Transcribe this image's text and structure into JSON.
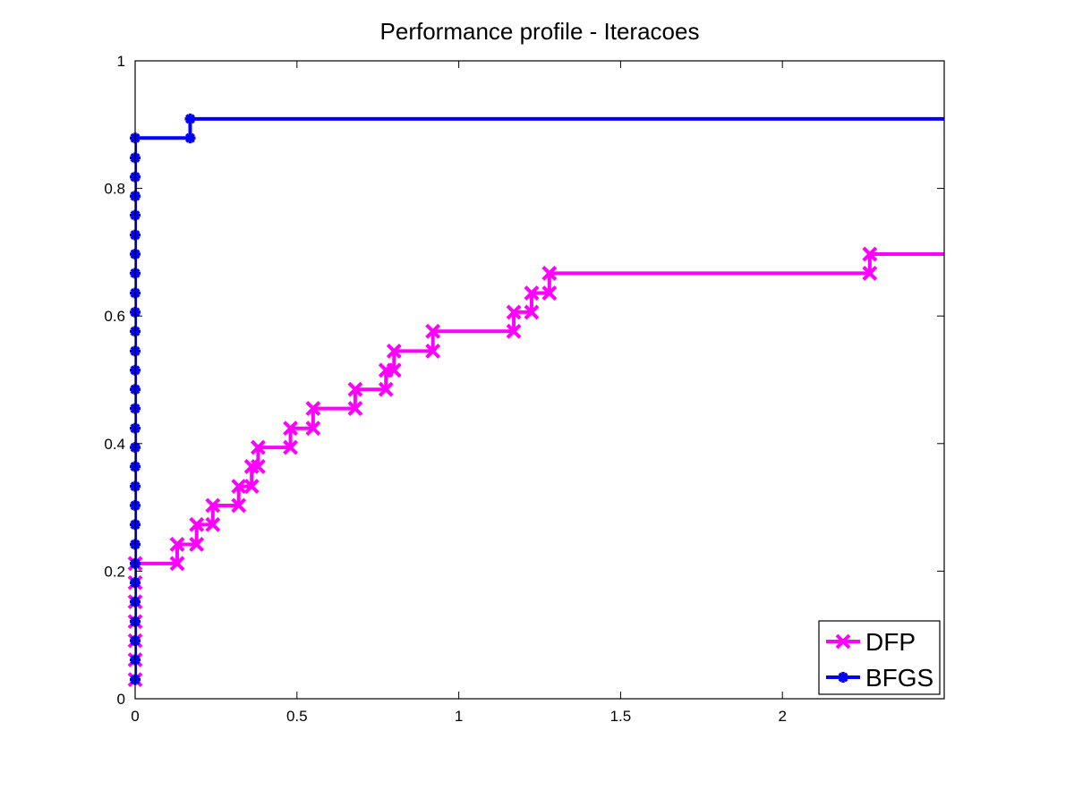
{
  "chart_data": {
    "type": "line",
    "title": "Performance profile - Iteracoes",
    "xlabel": "",
    "ylabel": "",
    "xlim": [
      0,
      2.5
    ],
    "ylim": [
      0,
      1
    ],
    "xticks": [
      0,
      0.5,
      1,
      1.5,
      2
    ],
    "xtick_labels": [
      "0",
      "0.5",
      "1",
      "1.5",
      "2"
    ],
    "yticks": [
      0,
      0.2,
      0.4,
      0.6,
      0.8,
      1
    ],
    "ytick_labels": [
      "0",
      "0.2",
      "0.4",
      "0.6",
      "0.8",
      "1"
    ],
    "grid": false,
    "legend_position": "bottom-right",
    "series": [
      {
        "name": "DFP",
        "color": "#ff00ff",
        "marker": "x",
        "step": true,
        "points": [
          [
            0,
            0.03
          ],
          [
            0,
            0.061
          ],
          [
            0,
            0.091
          ],
          [
            0,
            0.121
          ],
          [
            0,
            0.152
          ],
          [
            0,
            0.182
          ],
          [
            0,
            0.212
          ],
          [
            0.13,
            0.212
          ],
          [
            0.13,
            0.242
          ],
          [
            0.19,
            0.242
          ],
          [
            0.19,
            0.273
          ],
          [
            0.24,
            0.273
          ],
          [
            0.24,
            0.303
          ],
          [
            0.32,
            0.303
          ],
          [
            0.32,
            0.333
          ],
          [
            0.36,
            0.333
          ],
          [
            0.36,
            0.364
          ],
          [
            0.38,
            0.364
          ],
          [
            0.38,
            0.394
          ],
          [
            0.48,
            0.394
          ],
          [
            0.48,
            0.424
          ],
          [
            0.55,
            0.424
          ],
          [
            0.55,
            0.455
          ],
          [
            0.68,
            0.455
          ],
          [
            0.68,
            0.485
          ],
          [
            0.775,
            0.485
          ],
          [
            0.775,
            0.515
          ],
          [
            0.8,
            0.515
          ],
          [
            0.8,
            0.545
          ],
          [
            0.92,
            0.545
          ],
          [
            0.92,
            0.576
          ],
          [
            1.17,
            0.576
          ],
          [
            1.17,
            0.606
          ],
          [
            1.225,
            0.606
          ],
          [
            1.225,
            0.636
          ],
          [
            1.28,
            0.636
          ],
          [
            1.28,
            0.667
          ],
          [
            2.27,
            0.667
          ],
          [
            2.27,
            0.697
          ],
          [
            2.5,
            0.697
          ]
        ]
      },
      {
        "name": "BFGS",
        "color": "#0000ff",
        "marker": "asterisk",
        "step": true,
        "points": [
          [
            0,
            0.03
          ],
          [
            0,
            0.061
          ],
          [
            0,
            0.091
          ],
          [
            0,
            0.121
          ],
          [
            0,
            0.152
          ],
          [
            0,
            0.182
          ],
          [
            0,
            0.212
          ],
          [
            0,
            0.242
          ],
          [
            0,
            0.273
          ],
          [
            0,
            0.303
          ],
          [
            0,
            0.333
          ],
          [
            0,
            0.364
          ],
          [
            0,
            0.394
          ],
          [
            0,
            0.424
          ],
          [
            0,
            0.455
          ],
          [
            0,
            0.485
          ],
          [
            0,
            0.515
          ],
          [
            0,
            0.545
          ],
          [
            0,
            0.576
          ],
          [
            0,
            0.606
          ],
          [
            0,
            0.636
          ],
          [
            0,
            0.667
          ],
          [
            0,
            0.697
          ],
          [
            0,
            0.727
          ],
          [
            0,
            0.758
          ],
          [
            0,
            0.788
          ],
          [
            0,
            0.818
          ],
          [
            0,
            0.848
          ],
          [
            0,
            0.879
          ],
          [
            0.17,
            0.879
          ],
          [
            0.17,
            0.909
          ],
          [
            2.5,
            0.909
          ]
        ]
      }
    ]
  }
}
